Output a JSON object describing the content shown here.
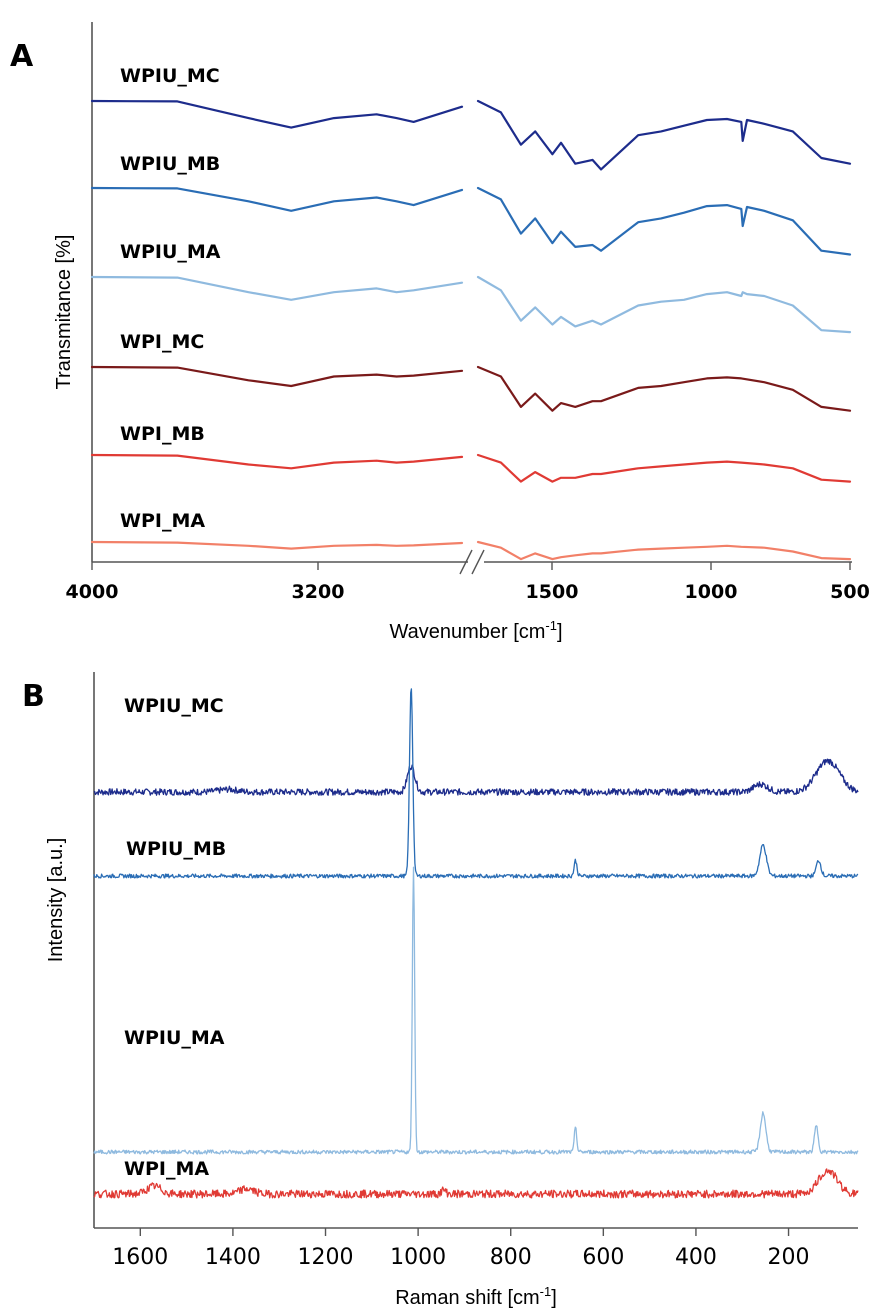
{
  "chart_data": [
    {
      "panel": "A",
      "type": "line",
      "xlabel": "Wavenumber [cm",
      "xlabel_sup": "-1",
      "xlabel_end": "]",
      "ylabel": "Transmitance [%]",
      "x_ticks": [
        "4000",
        "3200",
        "1500",
        "1000",
        "500"
      ],
      "x_segments": [
        [
          4000,
          2700
        ],
        [
          1800,
          500
        ]
      ],
      "axis_break": true,
      "grid": false,
      "series": [
        {
          "name": "WPIU_MC",
          "color": "#1d2c8c",
          "points": [
            [
              4000,
              0
            ],
            [
              3700,
              0.02
            ],
            [
              3450,
              0.9
            ],
            [
              3300,
              1.4
            ],
            [
              3150,
              0.9
            ],
            [
              3000,
              0.7
            ],
            [
              2930,
              0.9
            ],
            [
              2870,
              1.1
            ],
            [
              2700,
              0.3
            ],
            [
              1800,
              0
            ],
            [
              1720,
              0.6
            ],
            [
              1650,
              2.3
            ],
            [
              1600,
              1.6
            ],
            [
              1540,
              2.8
            ],
            [
              1510,
              2.2
            ],
            [
              1460,
              3.3
            ],
            [
              1400,
              3.1
            ],
            [
              1370,
              3.6
            ],
            [
              1240,
              1.8
            ],
            [
              1160,
              1.6
            ],
            [
              1080,
              1.3
            ],
            [
              1000,
              1.0
            ],
            [
              930,
              0.95
            ],
            [
              880,
              1.1
            ],
            [
              875,
              2.1
            ],
            [
              860,
              1.0
            ],
            [
              800,
              1.2
            ],
            [
              700,
              1.6
            ],
            [
              600,
              3.0
            ],
            [
              500,
              3.3
            ]
          ]
        },
        {
          "name": "WPIU_MB",
          "color": "#2a6db5",
          "points": [
            [
              4000,
              0
            ],
            [
              3700,
              0.02
            ],
            [
              3450,
              0.7
            ],
            [
              3300,
              1.2
            ],
            [
              3150,
              0.7
            ],
            [
              3000,
              0.5
            ],
            [
              2930,
              0.7
            ],
            [
              2870,
              0.9
            ],
            [
              2700,
              0.1
            ],
            [
              1800,
              0
            ],
            [
              1720,
              0.6
            ],
            [
              1650,
              2.4
            ],
            [
              1600,
              1.6
            ],
            [
              1540,
              2.9
            ],
            [
              1510,
              2.3
            ],
            [
              1460,
              3.1
            ],
            [
              1400,
              3.0
            ],
            [
              1370,
              3.3
            ],
            [
              1240,
              1.8
            ],
            [
              1160,
              1.6
            ],
            [
              1080,
              1.3
            ],
            [
              1000,
              0.95
            ],
            [
              930,
              0.9
            ],
            [
              880,
              1.1
            ],
            [
              875,
              2.0
            ],
            [
              860,
              1.0
            ],
            [
              800,
              1.2
            ],
            [
              700,
              1.7
            ],
            [
              600,
              3.3
            ],
            [
              500,
              3.5
            ]
          ]
        },
        {
          "name": "WPIU_MA",
          "color": "#8fbadf",
          "points": [
            [
              4000,
              0
            ],
            [
              3700,
              0.03
            ],
            [
              3450,
              0.8
            ],
            [
              3300,
              1.2
            ],
            [
              3150,
              0.8
            ],
            [
              3000,
              0.6
            ],
            [
              2930,
              0.8
            ],
            [
              2870,
              0.7
            ],
            [
              2700,
              0.3
            ],
            [
              1800,
              0
            ],
            [
              1720,
              0.7
            ],
            [
              1650,
              2.3
            ],
            [
              1600,
              1.6
            ],
            [
              1540,
              2.5
            ],
            [
              1510,
              2.1
            ],
            [
              1460,
              2.6
            ],
            [
              1400,
              2.3
            ],
            [
              1370,
              2.5
            ],
            [
              1240,
              1.5
            ],
            [
              1160,
              1.3
            ],
            [
              1080,
              1.2
            ],
            [
              1000,
              0.9
            ],
            [
              930,
              0.8
            ],
            [
              880,
              1.0
            ],
            [
              875,
              0.8
            ],
            [
              860,
              0.9
            ],
            [
              800,
              1.0
            ],
            [
              700,
              1.5
            ],
            [
              600,
              2.8
            ],
            [
              500,
              2.9
            ]
          ]
        },
        {
          "name": "WPI_MC",
          "color": "#7a1a1a",
          "points": [
            [
              4000,
              0
            ],
            [
              3700,
              0.03
            ],
            [
              3450,
              0.7
            ],
            [
              3300,
              1.0
            ],
            [
              3150,
              0.5
            ],
            [
              3000,
              0.4
            ],
            [
              2930,
              0.5
            ],
            [
              2870,
              0.45
            ],
            [
              2700,
              0.2
            ],
            [
              1800,
              0
            ],
            [
              1720,
              0.5
            ],
            [
              1650,
              2.1
            ],
            [
              1600,
              1.4
            ],
            [
              1540,
              2.3
            ],
            [
              1510,
              1.9
            ],
            [
              1460,
              2.1
            ],
            [
              1400,
              1.8
            ],
            [
              1370,
              1.8
            ],
            [
              1240,
              1.1
            ],
            [
              1160,
              1.0
            ],
            [
              1080,
              0.8
            ],
            [
              1000,
              0.6
            ],
            [
              930,
              0.55
            ],
            [
              880,
              0.6
            ],
            [
              800,
              0.8
            ],
            [
              700,
              1.2
            ],
            [
              600,
              2.1
            ],
            [
              500,
              2.3
            ]
          ]
        },
        {
          "name": "WPI_MB",
          "color": "#e03a34",
          "points": [
            [
              4000,
              0
            ],
            [
              3700,
              0.03
            ],
            [
              3450,
              0.5
            ],
            [
              3300,
              0.7
            ],
            [
              3150,
              0.4
            ],
            [
              3000,
              0.3
            ],
            [
              2930,
              0.4
            ],
            [
              2870,
              0.35
            ],
            [
              2700,
              0.1
            ],
            [
              1800,
              0
            ],
            [
              1720,
              0.4
            ],
            [
              1650,
              1.4
            ],
            [
              1600,
              0.9
            ],
            [
              1540,
              1.4
            ],
            [
              1510,
              1.2
            ],
            [
              1460,
              1.2
            ],
            [
              1400,
              1.0
            ],
            [
              1370,
              1.0
            ],
            [
              1240,
              0.7
            ],
            [
              1160,
              0.6
            ],
            [
              1080,
              0.5
            ],
            [
              1000,
              0.4
            ],
            [
              930,
              0.35
            ],
            [
              880,
              0.4
            ],
            [
              800,
              0.5
            ],
            [
              700,
              0.7
            ],
            [
              600,
              1.3
            ],
            [
              500,
              1.4
            ]
          ]
        },
        {
          "name": "WPI_MA",
          "color": "#f28068",
          "points": [
            [
              4000,
              0
            ],
            [
              3700,
              0.03
            ],
            [
              3450,
              0.2
            ],
            [
              3300,
              0.35
            ],
            [
              3150,
              0.2
            ],
            [
              3000,
              0.15
            ],
            [
              2930,
              0.2
            ],
            [
              2870,
              0.18
            ],
            [
              2700,
              0.05
            ],
            [
              1800,
              0
            ],
            [
              1720,
              0.3
            ],
            [
              1650,
              0.9
            ],
            [
              1600,
              0.6
            ],
            [
              1540,
              0.9
            ],
            [
              1510,
              0.8
            ],
            [
              1460,
              0.7
            ],
            [
              1400,
              0.6
            ],
            [
              1370,
              0.6
            ],
            [
              1240,
              0.4
            ],
            [
              1160,
              0.35
            ],
            [
              1080,
              0.3
            ],
            [
              1000,
              0.25
            ],
            [
              930,
              0.2
            ],
            [
              880,
              0.25
            ],
            [
              800,
              0.3
            ],
            [
              700,
              0.5
            ],
            [
              600,
              0.85
            ],
            [
              500,
              0.9
            ]
          ]
        }
      ]
    },
    {
      "panel": "B",
      "type": "line",
      "xlabel": "Raman shift [cm",
      "xlabel_sup": "-1",
      "xlabel_end": "]",
      "ylabel": "Intensity [a.u.]",
      "x_ticks": [
        "1600",
        "1400",
        "1200",
        "1000",
        "800",
        "600",
        "400",
        "200"
      ],
      "xlim": [
        1700,
        50
      ],
      "grid": false,
      "series": [
        {
          "name": "WPIU_MC",
          "color": "#1d2c8c",
          "peaks": [
            [
              1015,
              1.0,
              8
            ],
            [
              1410,
              0.1,
              20
            ],
            [
              260,
              0.3,
              15
            ],
            [
              115,
              1.2,
              25
            ]
          ],
          "noise": 0.25
        },
        {
          "name": "WPIU_MB",
          "color": "#2a6db5",
          "peaks": [
            [
              1015,
              7.3,
              3.5
            ],
            [
              660,
              0.6,
              3
            ],
            [
              255,
              1.2,
              7
            ],
            [
              135,
              0.6,
              5
            ]
          ],
          "noise": 0.15
        },
        {
          "name": "WPIU_MA",
          "color": "#8fbadf",
          "peaks": [
            [
              1010,
              11.0,
              2.5
            ],
            [
              660,
              1.0,
              2.5
            ],
            [
              255,
              1.5,
              6
            ],
            [
              140,
              1.0,
              4
            ]
          ],
          "noise": 0.15
        },
        {
          "name": "WPI_MA",
          "color": "#e03a34",
          "peaks": [
            [
              1570,
              0.3,
              15
            ],
            [
              1370,
              0.2,
              15
            ],
            [
              945,
              0.15,
              5
            ],
            [
              115,
              0.9,
              20
            ]
          ],
          "noise": 0.3
        }
      ]
    }
  ],
  "panels": {
    "a_letter": "A",
    "b_letter": "B"
  }
}
